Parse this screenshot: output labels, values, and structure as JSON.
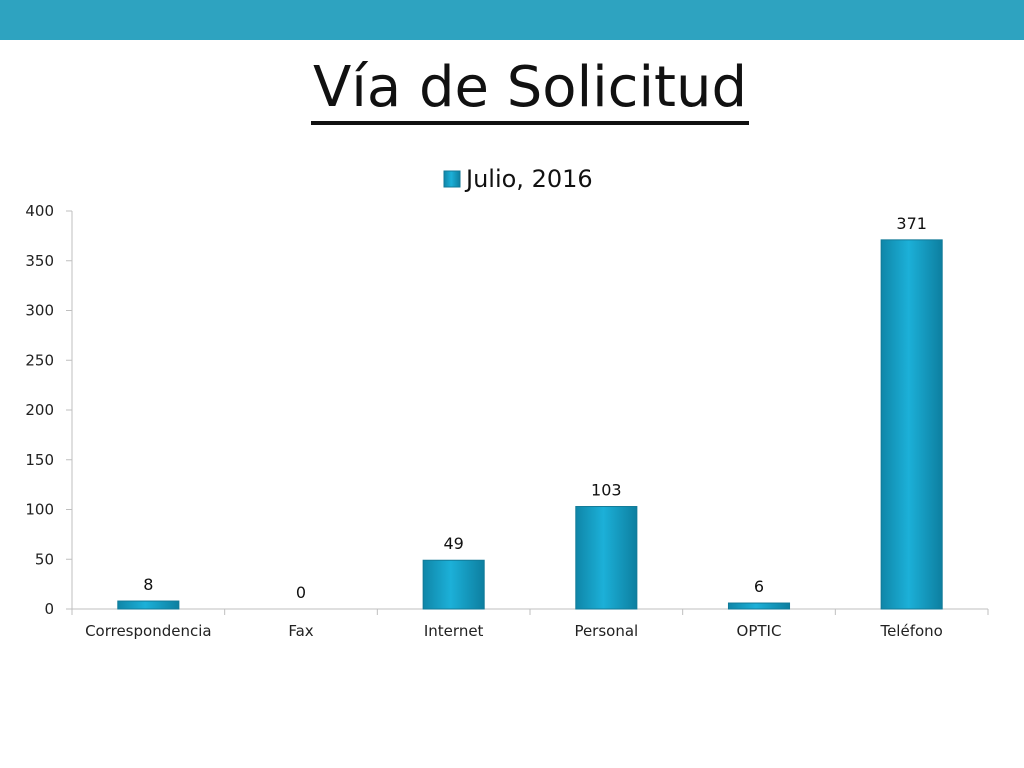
{
  "slide": {
    "title": "Vía de Solicitud",
    "accent_color": "#2ea3c0"
  },
  "chart_data": {
    "type": "bar",
    "categories": [
      "Correspondencia",
      "Fax",
      "Internet",
      "Personal",
      "OPTIC",
      "Teléfono"
    ],
    "series": [
      {
        "name": "Julio, 2016",
        "values": [
          8,
          0,
          49,
          103,
          6,
          371
        ]
      }
    ],
    "data_labels": [
      "8",
      "0",
      "49",
      "103",
      "6",
      "371"
    ],
    "ylim": [
      0,
      400
    ],
    "yticks": [
      0,
      50,
      100,
      150,
      200,
      250,
      300,
      350,
      400
    ],
    "grid": false,
    "legend_position": "top",
    "colors": {
      "bar": "#1aa7cf",
      "bar_edge": "#127a98",
      "axis": "#bfbfbf"
    }
  }
}
